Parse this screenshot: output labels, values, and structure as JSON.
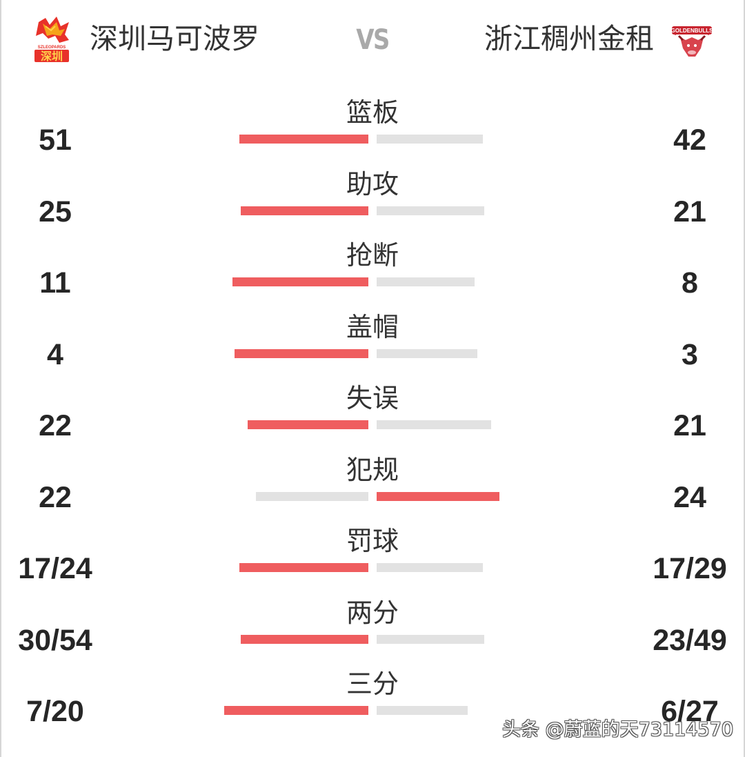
{
  "header": {
    "home_team": "深圳马可波罗",
    "away_team": "浙江稠州金租",
    "vs": "VS",
    "home_logo_text": "深圳",
    "home_logo_small": "SZLEOPARDS",
    "away_logo_text": "GOLDENBULLS"
  },
  "colors": {
    "highlight": "#ef5d5f",
    "neutral": "#e2e2e2",
    "vs": "#a9a9a9"
  },
  "stats": [
    {
      "label": "篮板",
      "home": "51",
      "away": "42",
      "home_bar": 0.78,
      "away_bar": 0.64,
      "leader": "home"
    },
    {
      "label": "助攻",
      "home": "25",
      "away": "21",
      "home_bar": 0.77,
      "away_bar": 0.65,
      "leader": "home"
    },
    {
      "label": "抢断",
      "home": "11",
      "away": "8",
      "home_bar": 0.82,
      "away_bar": 0.59,
      "leader": "home"
    },
    {
      "label": "盖帽",
      "home": "4",
      "away": "3",
      "home_bar": 0.81,
      "away_bar": 0.61,
      "leader": "home"
    },
    {
      "label": "失误",
      "home": "22",
      "away": "21",
      "home_bar": 0.73,
      "away_bar": 0.69,
      "leader": "home"
    },
    {
      "label": "犯规",
      "home": "22",
      "away": "24",
      "home_bar": 0.68,
      "away_bar": 0.74,
      "leader": "away"
    },
    {
      "label": "罚球",
      "home": "17/24",
      "away": "17/29",
      "home_bar": 0.78,
      "away_bar": 0.64,
      "leader": "home"
    },
    {
      "label": "两分",
      "home": "30/54",
      "away": "23/49",
      "home_bar": 0.77,
      "away_bar": 0.65,
      "leader": "home"
    },
    {
      "label": "三分",
      "home": "7/20",
      "away": "6/27",
      "home_bar": 0.87,
      "away_bar": 0.55,
      "leader": "home"
    }
  ],
  "watermark": "头条 @蔚蓝的天73114570"
}
